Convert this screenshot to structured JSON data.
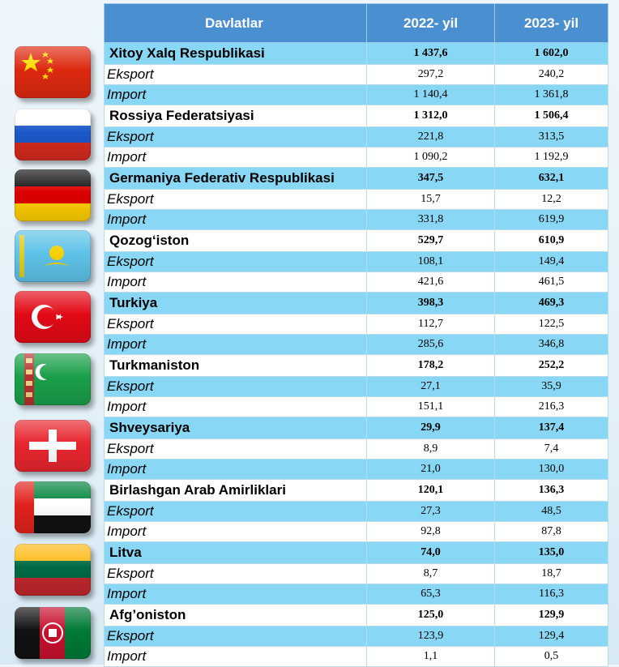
{
  "table": {
    "headers": [
      "Davlatlar",
      "2022- yil",
      "2023- yil"
    ],
    "rows": [
      {
        "label": "Xitoy Xalq Respublikasi",
        "v2022": "1 437,6",
        "v2023": "1 602,0",
        "kind": "country"
      },
      {
        "label": "Eksport",
        "v2022": "297,2",
        "v2023": "240,2",
        "kind": "sub"
      },
      {
        "label": "Import",
        "v2022": "1 140,4",
        "v2023": "1 361,8",
        "kind": "sub"
      },
      {
        "label": "Rossiya Federatsiyasi",
        "v2022": "1 312,0",
        "v2023": "1 506,4",
        "kind": "country"
      },
      {
        "label": "Eksport",
        "v2022": "221,8",
        "v2023": "313,5",
        "kind": "sub"
      },
      {
        "label": "Import",
        "v2022": "1 090,2",
        "v2023": "1 192,9",
        "kind": "sub"
      },
      {
        "label": "Germaniya Federativ Respublikasi",
        "v2022": "347,5",
        "v2023": "632,1",
        "kind": "country"
      },
      {
        "label": "Eksport",
        "v2022": "15,7",
        "v2023": "12,2",
        "kind": "sub"
      },
      {
        "label": "Import",
        "v2022": "331,8",
        "v2023": "619,9",
        "kind": "sub"
      },
      {
        "label": "Qozog‘iston",
        "v2022": "529,7",
        "v2023": "610,9",
        "kind": "country"
      },
      {
        "label": "Eksport",
        "v2022": "108,1",
        "v2023": "149,4",
        "kind": "sub"
      },
      {
        "label": "Import",
        "v2022": "421,6",
        "v2023": "461,5",
        "kind": "sub"
      },
      {
        "label": "Turkiya",
        "v2022": "398,3",
        "v2023": "469,3",
        "kind": "country"
      },
      {
        "label": "Eksport",
        "v2022": "112,7",
        "v2023": "122,5",
        "kind": "sub"
      },
      {
        "label": "Import",
        "v2022": "285,6",
        "v2023": "346,8",
        "kind": "sub"
      },
      {
        "label": "Turkmaniston",
        "v2022": "178,2",
        "v2023": "252,2",
        "kind": "country"
      },
      {
        "label": "Eksport",
        "v2022": "27,1",
        "v2023": "35,9",
        "kind": "sub"
      },
      {
        "label": "Import",
        "v2022": "151,1",
        "v2023": "216,3",
        "kind": "sub"
      },
      {
        "label": "Shveysariya",
        "v2022": "29,9",
        "v2023": "137,4",
        "kind": "country"
      },
      {
        "label": "Eksport",
        "v2022": "8,9",
        "v2023": "7,4",
        "kind": "sub"
      },
      {
        "label": "Import",
        "v2022": "21,0",
        "v2023": "130,0",
        "kind": "sub"
      },
      {
        "label": "Birlashgan Arab Amirliklari",
        "v2022": "120,1",
        "v2023": "136,3",
        "kind": "country"
      },
      {
        "label": "Eksport",
        "v2022": "27,3",
        "v2023": "48,5",
        "kind": "sub"
      },
      {
        "label": "Import",
        "v2022": "92,8",
        "v2023": "87,8",
        "kind": "sub"
      },
      {
        "label": "Litva",
        "v2022": "74,0",
        "v2023": "135,0",
        "kind": "country"
      },
      {
        "label": "Eksport",
        "v2022": "8,7",
        "v2023": "18,7",
        "kind": "sub"
      },
      {
        "label": "Import",
        "v2022": "65,3",
        "v2023": "116,3",
        "kind": "sub"
      },
      {
        "label": "Afg’oniston",
        "v2022": "125,0",
        "v2023": "129,9",
        "kind": "country"
      },
      {
        "label": "Eksport",
        "v2022": "123,9",
        "v2023": "129,4",
        "kind": "sub"
      },
      {
        "label": "Import",
        "v2022": "1,1",
        "v2023": "0,5",
        "kind": "sub"
      }
    ]
  },
  "flags": [
    {
      "name": "china-flag-icon"
    },
    {
      "name": "russia-flag-icon"
    },
    {
      "name": "germany-flag-icon"
    },
    {
      "name": "kazakhstan-flag-icon"
    },
    {
      "name": "turkey-flag-icon"
    },
    {
      "name": "turkmenistan-flag-icon"
    },
    {
      "name": "switzerland-flag-icon"
    },
    {
      "name": "uae-flag-icon"
    },
    {
      "name": "lithuania-flag-icon"
    },
    {
      "name": "afghanistan-flag-icon"
    }
  ],
  "colors": {
    "header_bg": "#4a90d0",
    "row_blue": "#88d7f5",
    "row_white": "#ffffff"
  }
}
